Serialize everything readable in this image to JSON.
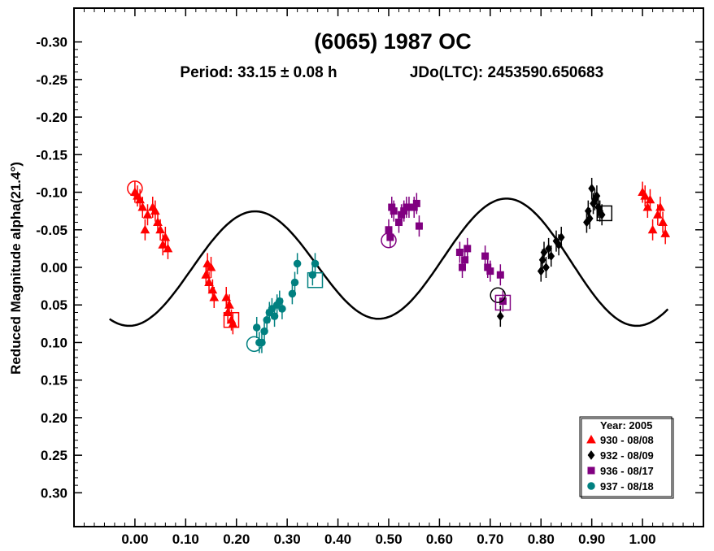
{
  "chart_data": {
    "type": "scatter",
    "title": "(6065) 1987 OC",
    "subtitle_period": "Period: 33.15 ± 0.08 h",
    "subtitle_epoch": "JDo(LTC): 2453590.650683",
    "ylabel": "Reduced Magnitude alpha(21.4°)",
    "xlabel": "",
    "xlim": [
      -0.12,
      1.12
    ],
    "ylim": [
      -0.345,
      0.345
    ],
    "y_inverted": true,
    "x_ticks": [
      "0.00",
      "0.10",
      "0.20",
      "0.30",
      "0.40",
      "0.50",
      "0.60",
      "0.70",
      "0.80",
      "0.90",
      "1.00"
    ],
    "y_ticks": [
      "-0.30",
      "-0.25",
      "-0.20",
      "-0.15",
      "-0.10",
      "-0.05",
      "0.00",
      "0.05",
      "0.10",
      "0.15",
      "0.20",
      "0.25",
      "0.30"
    ],
    "grid": false,
    "legend_placement": "bottom-right",
    "legend_title": "Year: 2005",
    "series": [
      {
        "name": "930 - 08/08",
        "color": "#ff0000",
        "marker": "triangle",
        "x": [
          0.0,
          0.005,
          0.01,
          0.015,
          0.02,
          0.025,
          0.035,
          0.04,
          0.045,
          0.05,
          0.055,
          0.06,
          0.065,
          0.14,
          0.143,
          0.146,
          0.15,
          0.153,
          0.156,
          0.18,
          0.183,
          0.186,
          0.19,
          0.193,
          1.0,
          1.005,
          1.01,
          1.015,
          1.02,
          1.03,
          1.035,
          1.04,
          1.045
        ],
        "y": [
          -0.1,
          -0.095,
          -0.09,
          -0.08,
          -0.05,
          -0.07,
          -0.08,
          -0.075,
          -0.06,
          -0.05,
          -0.03,
          -0.04,
          -0.025,
          0.01,
          -0.005,
          0.02,
          0.0,
          0.03,
          0.04,
          0.04,
          0.06,
          0.05,
          0.07,
          0.075,
          -0.1,
          -0.095,
          -0.08,
          -0.09,
          -0.05,
          -0.07,
          -0.08,
          -0.06,
          -0.045
        ]
      },
      {
        "name": "932 - 08/09",
        "color": "#000000",
        "marker": "diamond",
        "x": [
          0.72,
          0.8,
          0.803,
          0.806,
          0.81,
          0.815,
          0.82,
          0.83,
          0.835,
          0.84,
          0.89,
          0.893,
          0.896,
          0.9,
          0.903,
          0.906,
          0.91,
          0.913,
          0.916,
          0.92
        ],
        "y": [
          0.065,
          0.005,
          -0.01,
          -0.02,
          0.0,
          -0.025,
          -0.015,
          -0.035,
          -0.03,
          -0.04,
          -0.06,
          -0.075,
          -0.065,
          -0.105,
          -0.085,
          -0.09,
          -0.095,
          -0.08,
          -0.075,
          -0.07
        ]
      },
      {
        "name": "936 - 08/17",
        "color": "#800080",
        "marker": "square",
        "x": [
          0.5,
          0.503,
          0.506,
          0.51,
          0.52,
          0.525,
          0.53,
          0.535,
          0.54,
          0.55,
          0.555,
          0.56,
          0.64,
          0.645,
          0.65,
          0.655,
          0.69,
          0.695,
          0.7,
          0.72,
          0.725
        ],
        "y": [
          -0.05,
          -0.04,
          -0.08,
          -0.075,
          -0.06,
          -0.07,
          -0.075,
          -0.08,
          -0.08,
          -0.08,
          -0.085,
          -0.055,
          -0.02,
          0.0,
          -0.01,
          -0.025,
          -0.015,
          0.0,
          0.005,
          0.01,
          0.045
        ]
      },
      {
        "name": "937 - 08/18",
        "color": "#008080",
        "marker": "circle",
        "x": [
          0.24,
          0.245,
          0.25,
          0.255,
          0.26,
          0.265,
          0.27,
          0.275,
          0.28,
          0.285,
          0.29,
          0.31,
          0.315,
          0.32,
          0.35,
          0.355
        ],
        "y": [
          0.08,
          0.1,
          0.1,
          0.085,
          0.07,
          0.06,
          0.055,
          0.065,
          0.05,
          0.045,
          0.055,
          0.035,
          0.02,
          -0.005,
          0.01,
          -0.005
        ]
      }
    ],
    "fit_curve": {
      "mean": -0.005,
      "terms": [
        {
          "amp": 0.0055,
          "cos": 1,
          "sin": 0
        },
        {
          "amp": 0.0765,
          "cos": 2,
          "sin": 0
        },
        {
          "amp": 0.008,
          "cos": 0,
          "sin": 1
        },
        {
          "amp": -0.0153,
          "cos": 0,
          "sin": 2
        }
      ],
      "x_range": [
        -0.05,
        1.05
      ]
    },
    "reference_markers": [
      {
        "series_index": 0,
        "x": 0.0,
        "y": -0.105,
        "shape": "circle"
      },
      {
        "series_index": 0,
        "x": 0.19,
        "y": 0.07,
        "shape": "square"
      },
      {
        "series_index": 1,
        "x": 0.715,
        "y": 0.037,
        "shape": "circle"
      },
      {
        "series_index": 1,
        "x": 0.925,
        "y": -0.072,
        "shape": "square"
      },
      {
        "series_index": 2,
        "x": 0.5,
        "y": -0.036,
        "shape": "circle"
      },
      {
        "series_index": 2,
        "x": 0.725,
        "y": 0.047,
        "shape": "square"
      },
      {
        "series_index": 3,
        "x": 0.235,
        "y": 0.102,
        "shape": "circle"
      },
      {
        "series_index": 3,
        "x": 0.355,
        "y": 0.017,
        "shape": "square"
      }
    ]
  }
}
